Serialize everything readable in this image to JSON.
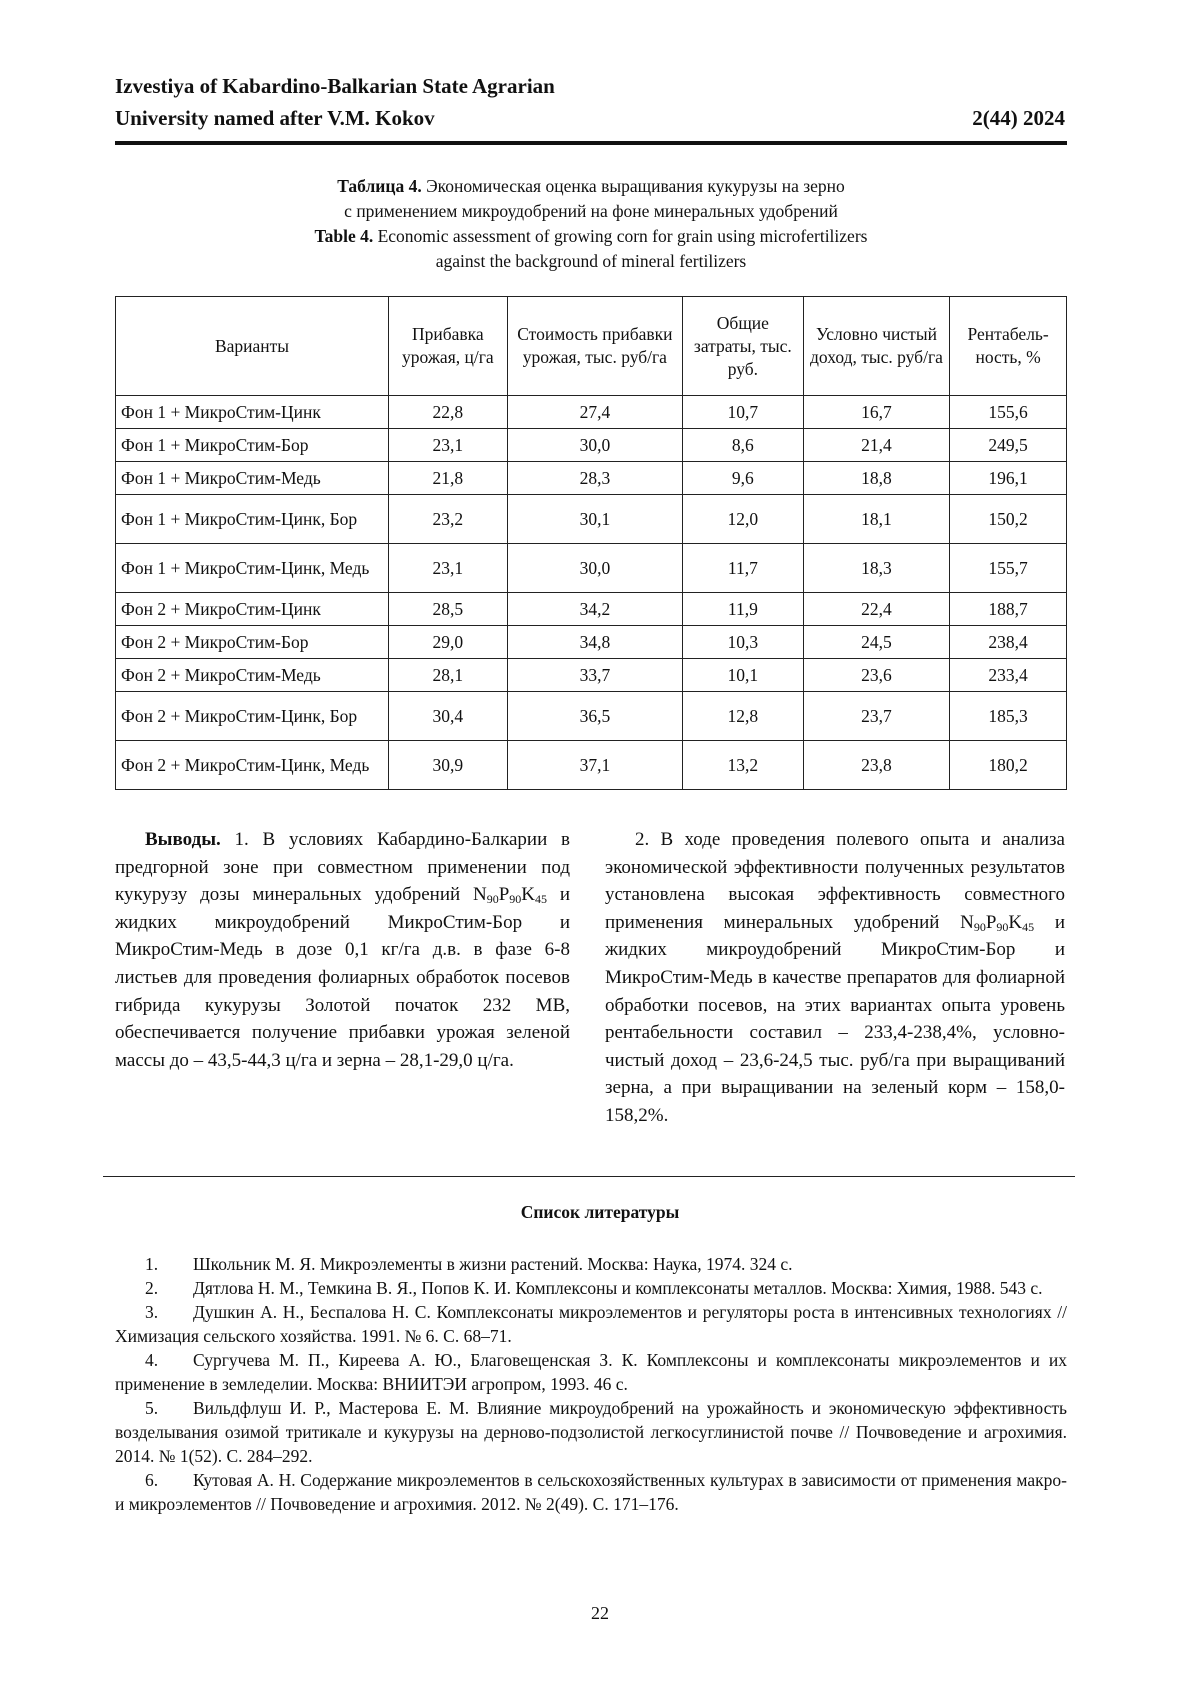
{
  "header": {
    "journal_line1": "Izvestiya of Kabardino-Balkarian State Agrarian",
    "journal_line2": "University named after V.M. Kokov",
    "issue": "2(44) 2024"
  },
  "caption": {
    "ru_label": "Таблица 4.",
    "ru_line1": " Экономическая оценка выращивания кукурузы на зерно",
    "ru_line2": "с применением микроудобрений на фоне минеральных удобрений",
    "en_label": "Table 4.",
    "en_line1": " Economic assessment of growing corn for grain using microfertilizers",
    "en_line2": "against the background of mineral fertilizers"
  },
  "table": {
    "headers": [
      "Варианты",
      "Прибавка урожая, ц/га",
      "Стоимость прибавки урожая, тыс. руб/га",
      "Общие затраты, тыс. руб.",
      "Условно чистый доход, тыс. руб/га",
      "Рентабель-ность, %"
    ],
    "rows": [
      [
        "Фон 1 + МикроСтим-Цинк",
        "22,8",
        "27,4",
        "10,7",
        "16,7",
        "155,6"
      ],
      [
        "Фон 1 + МикроСтим-Бор",
        "23,1",
        "30,0",
        "8,6",
        "21,4",
        "249,5"
      ],
      [
        "Фон 1 + МикроСтим-Медь",
        "21,8",
        "28,3",
        "9,6",
        "18,8",
        "196,1"
      ],
      [
        "Фон 1 + МикроСтим-Цинк, Бор",
        "23,2",
        "30,1",
        "12,0",
        "18,1",
        "150,2"
      ],
      [
        "Фон 1 + МикроСтим-Цинк, Медь",
        "23,1",
        "30,0",
        "11,7",
        "18,3",
        "155,7"
      ],
      [
        "Фон 2 + МикроСтим-Цинк",
        "28,5",
        "34,2",
        "11,9",
        "22,4",
        "188,7"
      ],
      [
        "Фон 2 + МикроСтим-Бор",
        "29,0",
        "34,8",
        "10,3",
        "24,5",
        "238,4"
      ],
      [
        "Фон 2 + МикроСтим-Медь",
        "28,1",
        "33,7",
        "10,1",
        "23,6",
        "233,4"
      ],
      [
        "Фон 2 + МикроСтим-Цинк, Бор",
        "30,4",
        "36,5",
        "12,8",
        "23,7",
        "185,3"
      ],
      [
        "Фон 2 + МикроСтим-Цинк, Медь",
        "30,9",
        "37,1",
        "13,2",
        "23,8",
        "180,2"
      ]
    ]
  },
  "conclusions": {
    "label": "Выводы.",
    "p1_before": " 1. В условиях Кабардино-Балкарии в предгорной зоне при совместном применении под кукурузу дозы минеральных удобрений ",
    "p1_after": " и жидких микроудобрений МикроСтим-Бор и МикроСтим-Медь в дозе 0,1 кг/га д.в. в фазе 6-8 листьев для проведения фолиарных обработок посевов гибрида кукурузы Золотой початок 232 МВ, обеспечивается получение прибавки урожая зеленой массы до – 43,5-44,3 ц/га и зерна – 28,1-29,0 ц/га.",
    "p2_before": "2. В ходе проведения полевого опыта и анализа экономической эффективности полученных результатов установлена высокая эффективность совместного применения минеральных удобрений ",
    "p2_after": " и жидких микроудобрений МикроСтим-Бор и МикроСтим-Медь в качестве препаратов для фолиарной обработки посевов, на этих вариантах опыта уровень рентабельности составил – 233,4-238,4%, условно-чистый доход – 23,6-24,5 тыс. руб/га при выращиваний зерна, а при выращивании на зеленый корм – 158,0-158,2%.",
    "formula": {
      "n": "N",
      "n_sub": "90",
      "p": "P",
      "p_sub": "90",
      "k": "K",
      "k_sub": "45"
    }
  },
  "references": {
    "title": "Список литературы",
    "items": [
      {
        "num": "1.",
        "text": "Школьник М. Я. Микроэлементы в жизни растений. Москва: Наука, 1974. 324 с."
      },
      {
        "num": "2.",
        "text": "Дятлова Н. М., Темкина В. Я., Попов К. И. Комплексоны и комплексонаты металлов. Москва: Химия, 1988. 543 с."
      },
      {
        "num": "3.",
        "text": "Душкин А. Н., Беспалова Н. С. Комплексонаты микроэлементов и регуляторы роста в интенсивных технологиях // Химизация сельского хозяйства. 1991. № 6. С. 68–71."
      },
      {
        "num": "4.",
        "text": "Сургучева М. П., Киреева А. Ю., Благовещенская З. К. Комплексоны и комплексонаты микроэлементов и их применение в земледелии. Москва: ВНИИТЭИ агропром, 1993. 46 с."
      },
      {
        "num": "5.",
        "text": "Вильдфлуш И. Р., Мастерова Е. М. Влияние микроудобрений на урожайность и экономическую эффективность возделывания озимой тритикале и кукурузы на дерново-подзолистой легкосуглинистой почве // Почвоведение и агрохимия. 2014. № 1(52). С. 284–292."
      },
      {
        "num": "6.",
        "text": "Кутовая А. Н. Содержание микроэлементов в сельскохозяйственных культурах в зависимости от применения макро- и микроэлементов // Почвоведение и агрохимия. 2012. № 2(49). С. 171–176."
      }
    ]
  },
  "page_number": "22"
}
